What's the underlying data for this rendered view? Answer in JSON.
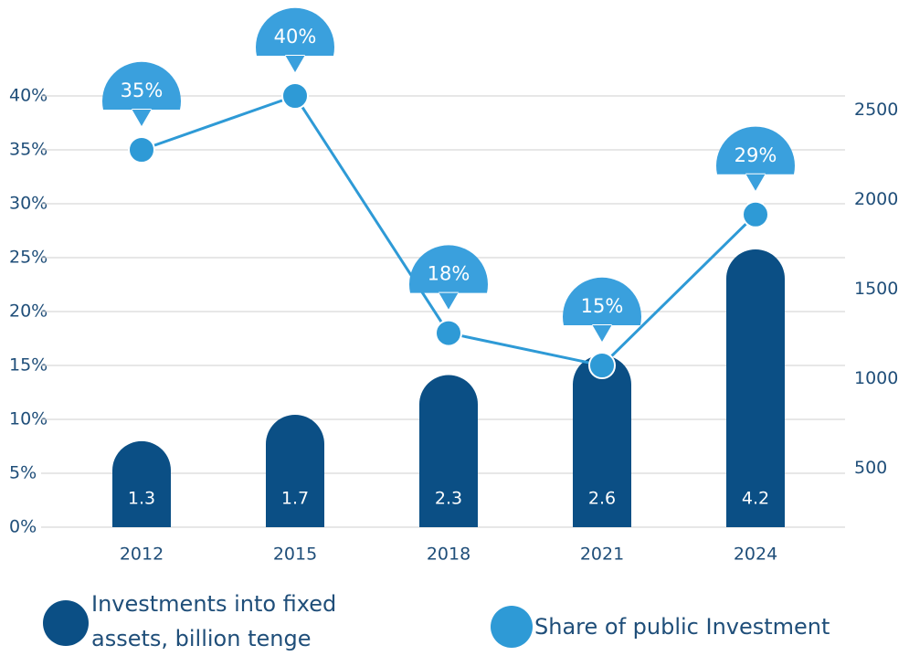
{
  "chart_data": {
    "type": "bar_line",
    "categories": [
      "2012",
      "2015",
      "2018",
      "2021",
      "2024"
    ],
    "series": [
      {
        "name": "Investments into fixed assets, billion tenge",
        "type": "bar",
        "color": "#0b4f85",
        "values": [
          1.3,
          1.7,
          2.3,
          2.6,
          4.2
        ]
      },
      {
        "name": "Share of public Investment",
        "type": "line",
        "color": "#2e9ad6",
        "values": [
          35,
          40,
          18,
          15,
          29
        ],
        "value_labels": [
          "35%",
          "40%",
          "18%",
          "15%",
          "29%"
        ]
      }
    ],
    "ylim": [
      0,
      40
    ],
    "yticks": [
      {
        "value": 0,
        "label": "0%"
      },
      {
        "value": 5,
        "label": "5%"
      },
      {
        "value": 10,
        "label": "10%"
      },
      {
        "value": 15,
        "label": "15%"
      },
      {
        "value": 20,
        "label": "20%"
      },
      {
        "value": 25,
        "label": "25%"
      },
      {
        "value": 30,
        "label": "30%"
      },
      {
        "value": 35,
        "label": "35%"
      },
      {
        "value": 40,
        "label": "40%"
      }
    ],
    "y2lim": [
      170,
      2580
    ],
    "y2ticks": [
      500,
      1000,
      1500,
      2000,
      2500
    ],
    "grid": true
  }
}
